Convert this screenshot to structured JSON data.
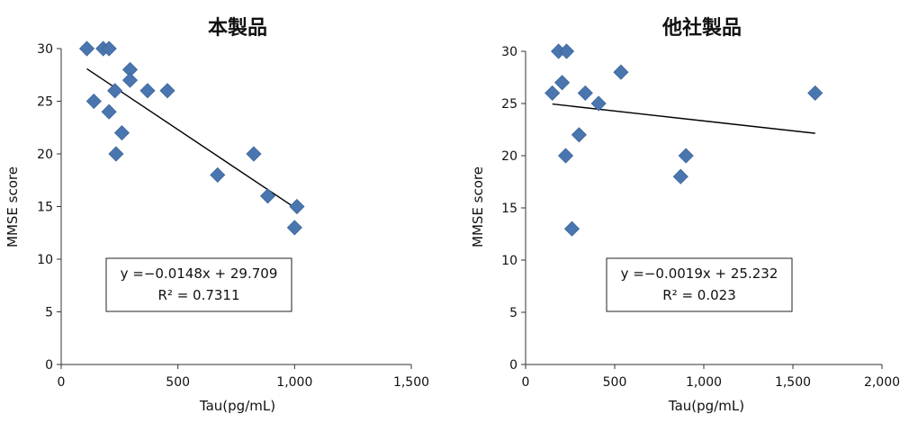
{
  "chart_data": [
    {
      "type": "scatter",
      "title": "本製品",
      "xlabel": "Tau(pg/mL)",
      "ylabel": "MMSE score",
      "xlim": [
        0,
        1500
      ],
      "ylim": [
        0,
        30
      ],
      "xticks": [
        0,
        500,
        1000,
        1500
      ],
      "xtick_labels": [
        "0",
        "500",
        "1,000",
        "1,500"
      ],
      "yticks": [
        0,
        5,
        10,
        15,
        20,
        25,
        30
      ],
      "ytick_labels": [
        "0",
        "5",
        "10",
        "15",
        "20",
        "25",
        "30"
      ],
      "marker_color": "#4a76b0",
      "points": [
        {
          "x": 110,
          "y": 30
        },
        {
          "x": 180,
          "y": 30
        },
        {
          "x": 205,
          "y": 30
        },
        {
          "x": 140,
          "y": 25
        },
        {
          "x": 205,
          "y": 24
        },
        {
          "x": 230,
          "y": 26
        },
        {
          "x": 235,
          "y": 20
        },
        {
          "x": 260,
          "y": 22
        },
        {
          "x": 295,
          "y": 28
        },
        {
          "x": 295,
          "y": 27
        },
        {
          "x": 370,
          "y": 26
        },
        {
          "x": 455,
          "y": 26
        },
        {
          "x": 670,
          "y": 18
        },
        {
          "x": 825,
          "y": 20
        },
        {
          "x": 885,
          "y": 16
        },
        {
          "x": 1000,
          "y": 13
        },
        {
          "x": 1010,
          "y": 15
        }
      ],
      "trendline": {
        "slope": -0.0148,
        "intercept": 29.709,
        "x_range": [
          110,
          1010
        ]
      },
      "equation": "y =−0.0148x + 29.709",
      "r_squared": "R² = 0.7311"
    },
    {
      "type": "scatter",
      "title": "他社製品",
      "xlabel": "Tau(pg/mL)",
      "ylabel": "MMSE score",
      "xlim": [
        0,
        2000
      ],
      "ylim": [
        0,
        30
      ],
      "xticks": [
        0,
        500,
        1000,
        1500,
        2000
      ],
      "xtick_labels": [
        "0",
        "500",
        "1,000",
        "1,500",
        "2,000"
      ],
      "yticks": [
        0,
        5,
        10,
        15,
        20,
        25,
        30
      ],
      "ytick_labels": [
        "0",
        "5",
        "10",
        "15",
        "20",
        "25",
        "30"
      ],
      "marker_color": "#4a76b0",
      "points": [
        {
          "x": 150,
          "y": 26
        },
        {
          "x": 185,
          "y": 30
        },
        {
          "x": 230,
          "y": 30
        },
        {
          "x": 205,
          "y": 27
        },
        {
          "x": 225,
          "y": 20
        },
        {
          "x": 260,
          "y": 13
        },
        {
          "x": 300,
          "y": 22
        },
        {
          "x": 335,
          "y": 26
        },
        {
          "x": 410,
          "y": 25
        },
        {
          "x": 535,
          "y": 28
        },
        {
          "x": 870,
          "y": 18
        },
        {
          "x": 900,
          "y": 20
        },
        {
          "x": 1625,
          "y": 26
        }
      ],
      "trendline": {
        "slope": -0.0019,
        "intercept": 25.232,
        "x_range": [
          150,
          1625
        ]
      },
      "equation": "y =−0.0019x + 25.232",
      "r_squared": "R² = 0.023"
    }
  ]
}
